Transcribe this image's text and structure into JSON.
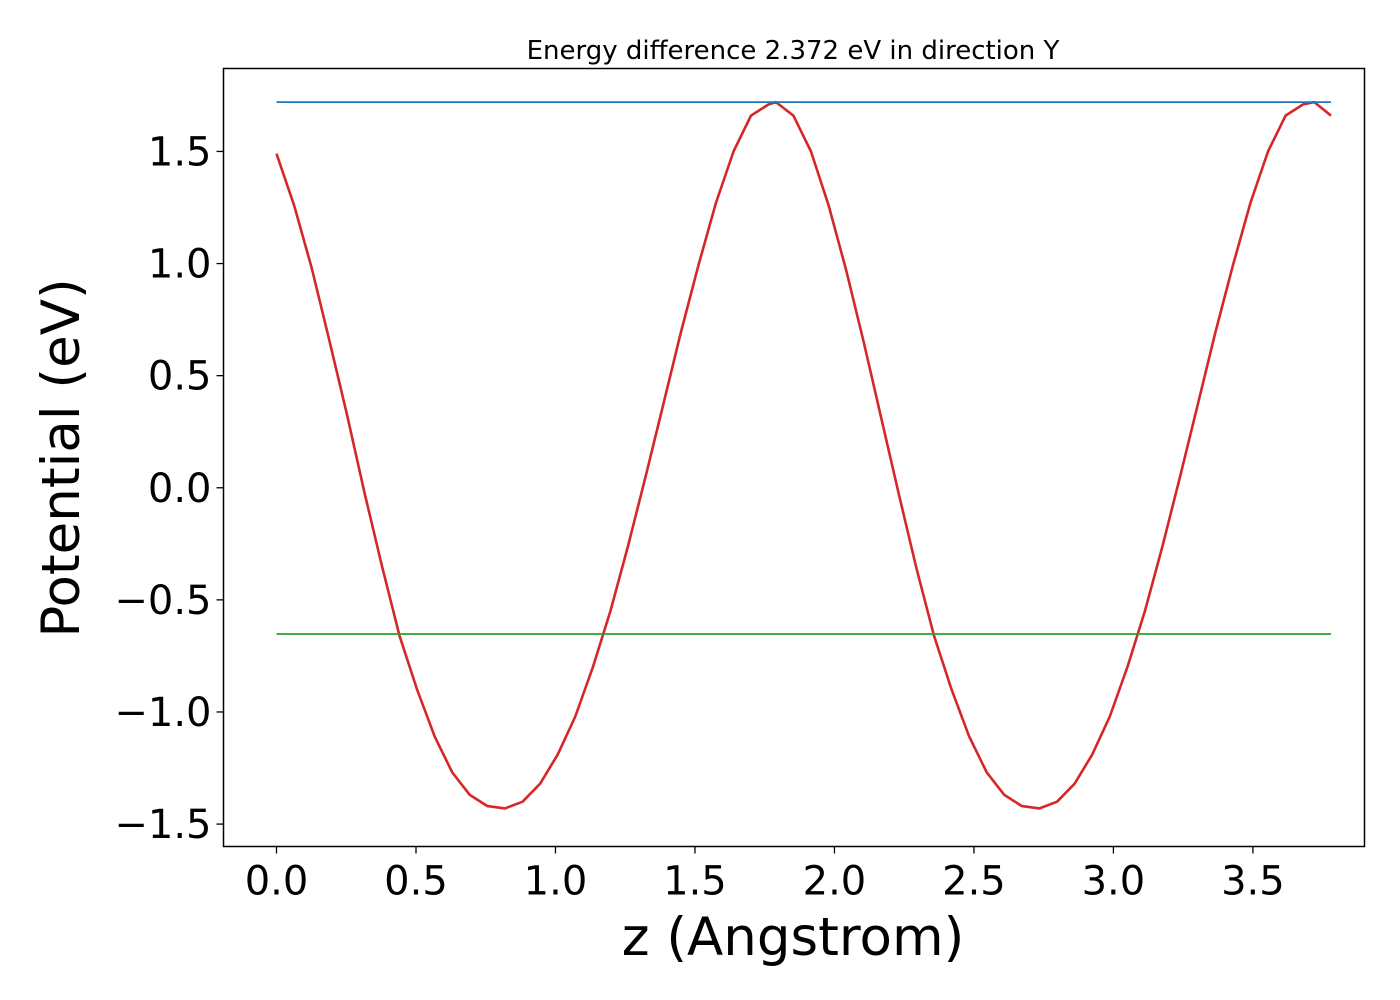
{
  "chart_data": {
    "type": "line",
    "title": "Energy difference 2.372 eV in direction Y",
    "xlabel": "z (Angstrom)",
    "ylabel": "Potential (eV)",
    "xlim": [
      -0.19,
      3.9
    ],
    "ylim": [
      -1.6,
      1.87
    ],
    "grid": false,
    "x_ticks": [
      "0.0",
      "0.5",
      "1.0",
      "1.5",
      "2.0",
      "2.5",
      "3.0",
      "3.5"
    ],
    "x_tick_values": [
      0.0,
      0.5,
      1.0,
      1.5,
      2.0,
      2.5,
      3.0,
      3.5
    ],
    "y_ticks": [
      "−1.5",
      "−1.0",
      "−0.5",
      "0.0",
      "0.5",
      "1.0",
      "1.5"
    ],
    "y_tick_values": [
      -1.5,
      -1.0,
      -0.5,
      0.0,
      0.5,
      1.0,
      1.5
    ],
    "series": [
      {
        "color": "#d62728",
        "x": [
          0.0,
          0.063,
          0.126,
          0.189,
          0.252,
          0.315,
          0.378,
          0.441,
          0.504,
          0.567,
          0.63,
          0.693,
          0.756,
          0.819,
          0.882,
          0.945,
          1.008,
          1.071,
          1.134,
          1.197,
          1.26,
          1.323,
          1.386,
          1.449,
          1.512,
          1.575,
          1.638,
          1.701,
          1.764,
          1.79,
          1.853,
          1.916,
          1.979,
          2.042,
          2.105,
          2.168,
          2.231,
          2.294,
          2.357,
          2.42,
          2.483,
          2.546,
          2.609,
          2.672,
          2.735,
          2.798,
          2.861,
          2.924,
          2.987,
          3.05,
          3.113,
          3.176,
          3.239,
          3.302,
          3.365,
          3.428,
          3.491,
          3.554,
          3.617,
          3.68,
          3.72,
          3.78
        ],
        "y": [
          1.49,
          1.26,
          0.98,
          0.66,
          0.33,
          -0.02,
          -0.35,
          -0.66,
          -0.9,
          -1.11,
          -1.27,
          -1.37,
          -1.42,
          -1.43,
          -1.4,
          -1.32,
          -1.19,
          -1.02,
          -0.8,
          -0.55,
          -0.26,
          0.05,
          0.37,
          0.69,
          0.99,
          1.27,
          1.5,
          1.66,
          1.71,
          1.72,
          1.66,
          1.5,
          1.26,
          0.97,
          0.65,
          0.31,
          -0.03,
          -0.36,
          -0.66,
          -0.9,
          -1.11,
          -1.27,
          -1.37,
          -1.42,
          -1.43,
          -1.4,
          -1.32,
          -1.19,
          -1.02,
          -0.8,
          -0.55,
          -0.26,
          0.05,
          0.37,
          0.69,
          0.99,
          1.27,
          1.5,
          1.66,
          1.71,
          1.72,
          1.66
        ]
      },
      {
        "color": "#1f77b4",
        "x": [
          0.0,
          3.78
        ],
        "y": [
          1.72,
          1.72
        ]
      },
      {
        "color": "#2ca02c",
        "x": [
          0.0,
          3.78
        ],
        "y": [
          -0.652,
          -0.652
        ]
      }
    ]
  }
}
